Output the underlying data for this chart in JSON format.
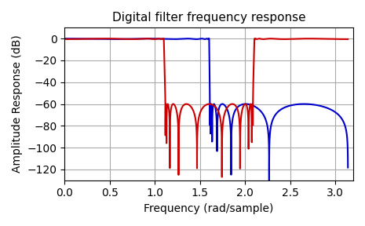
{
  "title": "Digital filter frequency response",
  "xlabel": "Frequency (rad/sample)",
  "ylabel": "Amplitude Response (dB)",
  "ylim": [
    -130,
    10
  ],
  "xlim": [
    0.0,
    3.2
  ],
  "yticks": [
    0,
    -20,
    -40,
    -60,
    -80,
    -100,
    -120
  ],
  "xticks": [
    0.0,
    0.5,
    1.0,
    1.5,
    2.0,
    2.5,
    3.0
  ],
  "blue_color": "#0000cc",
  "red_color": "#cc0000",
  "background_color": "#ffffff",
  "grid_color": "#aaaaaa",
  "figsize": [
    4.65,
    2.88
  ],
  "dpi": 100,
  "title_fontsize": 11,
  "label_fontsize": 10,
  "lp_order": 13,
  "lp_cutoff": 0.51,
  "lp_rp": 0.5,
  "lp_rs": 60,
  "bs_order": 10,
  "bs_low": 0.35,
  "bs_high": 0.67,
  "bs_rp": 0.5,
  "bs_rs": 60,
  "worN": 8000,
  "clip_min": 1e-07
}
